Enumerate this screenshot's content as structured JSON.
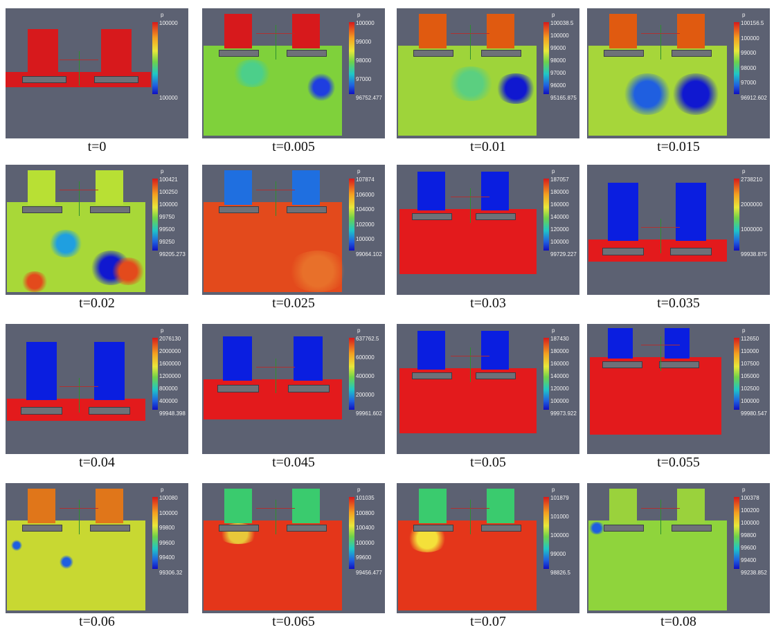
{
  "colors": {
    "background": "#5c6172",
    "plate": "#6e7178",
    "axis_green": "#2f8f2f",
    "axis_red": "#b03030"
  },
  "panels": [
    {
      "time": "t=0",
      "legend_title": "p",
      "legend_ticks": [
        "100000",
        "100000"
      ],
      "style": "red_all",
      "fill": "#d7191c",
      "chambers": "#d7191c"
    },
    {
      "time": "t=0.005",
      "legend_title": "p",
      "legend_ticks": [
        "100000",
        "99000",
        "98000",
        "97000",
        "96752.477"
      ],
      "style": "green_mix",
      "fill": "#7fd13b",
      "chambers": "#d7191c"
    },
    {
      "time": "t=0.01",
      "legend_title": "p",
      "legend_ticks": [
        "100038.5",
        "100000",
        "99000",
        "98000",
        "97000",
        "96000",
        "95165.875"
      ],
      "style": "green_blue",
      "fill": "#9ed43a",
      "chambers": "#e05a10"
    },
    {
      "time": "t=0.015",
      "legend_title": "p",
      "legend_ticks": [
        "100156.5",
        "100000",
        "99000",
        "98000",
        "97000",
        "96912.602"
      ],
      "style": "green_blue2",
      "fill": "#a6d63a",
      "chambers": "#e05a10"
    },
    {
      "time": "t=0.02",
      "legend_title": "p",
      "legend_ticks": [
        "100421",
        "100250",
        "100000",
        "99750",
        "99500",
        "99250",
        "99205.273"
      ],
      "style": "mixed",
      "fill": "#a8d838",
      "chambers": "#b8e034"
    },
    {
      "time": "t=0.025",
      "legend_title": "p",
      "legend_ticks": [
        "107874",
        "106000",
        "104000",
        "102000",
        "100000",
        "99064.102"
      ],
      "style": "orange",
      "fill": "#e34a1c",
      "chambers": "#1f6fe0"
    },
    {
      "time": "t=0.03",
      "legend_title": "p",
      "legend_ticks": [
        "187057",
        "180000",
        "160000",
        "140000",
        "120000",
        "100000",
        "99729.227"
      ],
      "style": "red",
      "fill": "#e31a1c",
      "chambers": "#0a1ee0"
    },
    {
      "time": "t=0.035",
      "legend_title": "p",
      "legend_ticks": [
        "2738210",
        "2000000",
        "1000000",
        "99938.875"
      ],
      "style": "red_low",
      "fill": "#e31a1c",
      "chambers": "#0a1ee0"
    },
    {
      "time": "t=0.04",
      "legend_title": "p",
      "legend_ticks": [
        "2076130",
        "2000000",
        "1600000",
        "1200000",
        "800000",
        "400000",
        "99948.398"
      ],
      "style": "red_low",
      "fill": "#e31a1c",
      "chambers": "#0a1ee0"
    },
    {
      "time": "t=0.045",
      "legend_title": "p",
      "legend_ticks": [
        "637762.5",
        "600000",
        "400000",
        "200000",
        "99961.602"
      ],
      "style": "red_mid",
      "fill": "#e31a1c",
      "chambers": "#0a1ee0"
    },
    {
      "time": "t=0.05",
      "legend_title": "p",
      "legend_ticks": [
        "187430",
        "180000",
        "160000",
        "140000",
        "120000",
        "100000",
        "99973.922"
      ],
      "style": "red",
      "fill": "#e31a1c",
      "chambers": "#0a1ee0"
    },
    {
      "time": "t=0.055",
      "legend_title": "p",
      "legend_ticks": [
        "112650",
        "110000",
        "107500",
        "105000",
        "102500",
        "100000",
        "99980.547"
      ],
      "style": "red_tall",
      "fill": "#e31a1c",
      "chambers": "#0a1ee0"
    },
    {
      "time": "t=0.06",
      "legend_title": "p",
      "legend_ticks": [
        "100080",
        "100000",
        "99800",
        "99600",
        "99400",
        "99306.32"
      ],
      "style": "yellow",
      "fill": "#c8d832",
      "chambers": "#e0761a"
    },
    {
      "time": "t=0.065",
      "legend_title": "p",
      "legend_ticks": [
        "101035",
        "100800",
        "100400",
        "100000",
        "99600",
        "99456.477"
      ],
      "style": "red_jet",
      "fill": "#e4361a",
      "chambers": "#3acb6e"
    },
    {
      "time": "t=0.07",
      "legend_title": "p",
      "legend_ticks": [
        "101879",
        "101000",
        "100000",
        "99000",
        "98826.5"
      ],
      "style": "red_jet2",
      "fill": "#e4361a",
      "chambers": "#3acb6e"
    },
    {
      "time": "t=0.08",
      "legend_title": "p",
      "legend_ticks": [
        "100378",
        "100200",
        "100000",
        "99800",
        "99600",
        "99400",
        "99238.852"
      ],
      "style": "low_green",
      "fill": "#8fd43c",
      "chambers": "#9ad23c"
    }
  ]
}
